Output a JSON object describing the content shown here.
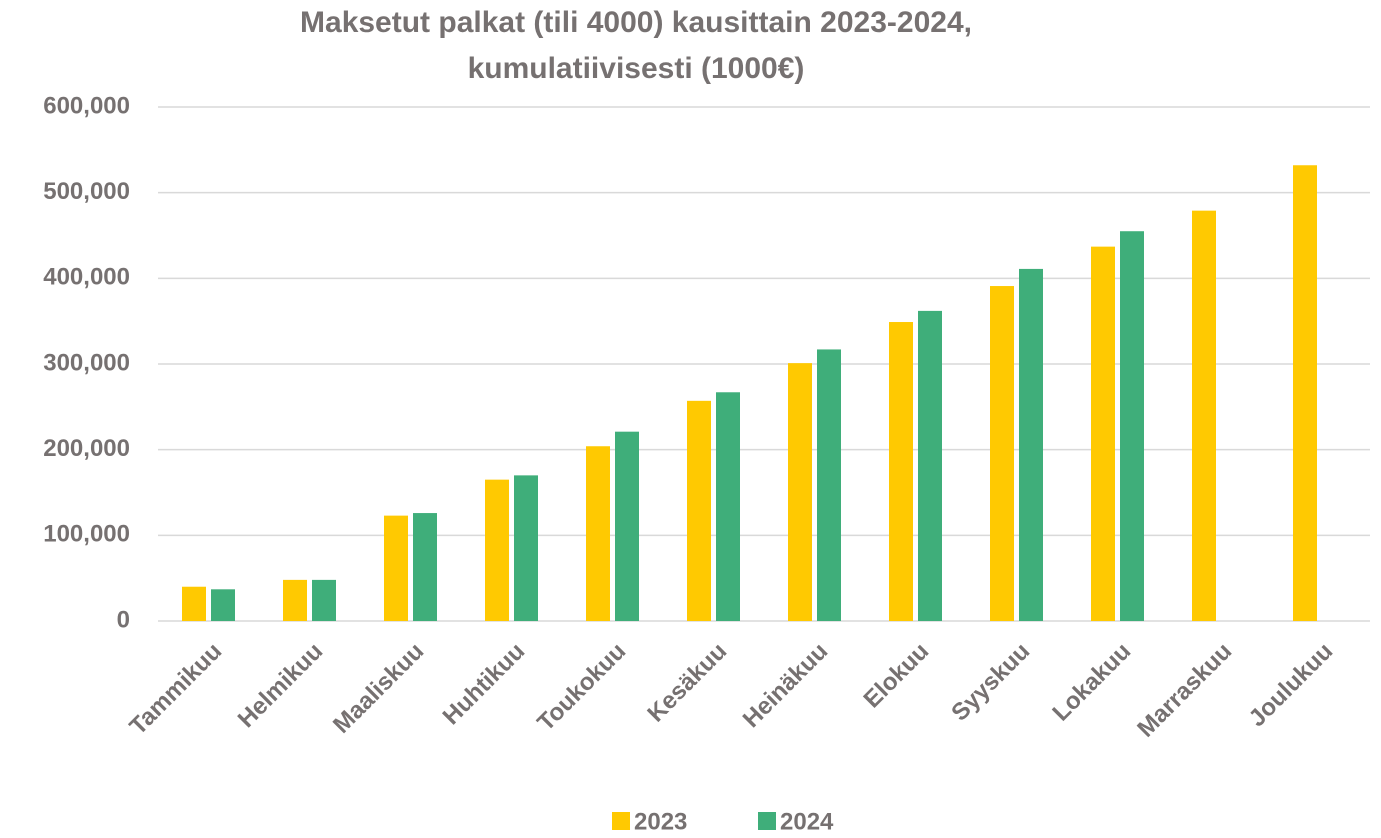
{
  "chart_data": {
    "type": "bar",
    "title": [
      "Maksetut palkat (tili 4000) kausittain 2023-2024,",
      "kumulatiivisesti (1000€)"
    ],
    "categories": [
      "Tammikuu",
      "Helmikuu",
      "Maaliskuu",
      "Huhtikuu",
      "Toukokuu",
      "Kesäkuu",
      "Heinäkuu",
      "Elokuu",
      "Syyskuu",
      "Lokakuu",
      "Marraskuu",
      "Joulukuu"
    ],
    "series": [
      {
        "name": "2023",
        "color": "#ffc901",
        "values": [
          40000,
          48000,
          123000,
          165000,
          204000,
          257000,
          301000,
          349000,
          391000,
          437000,
          479000,
          532000
        ]
      },
      {
        "name": "2024",
        "color": "#3fae7a",
        "values": [
          37000,
          48000,
          126000,
          170000,
          221000,
          267000,
          317000,
          362000,
          411000,
          455000,
          null,
          null
        ]
      }
    ],
    "ylim": [
      0,
      600000
    ],
    "yticks": [
      0,
      {
        "value": 100000,
        "label": "100,000"
      },
      {
        "value": 200000,
        "label": "200,000"
      },
      {
        "value": 300000,
        "label": "300,000"
      },
      {
        "value": 400000,
        "label": "400,000"
      },
      {
        "value": 500000,
        "label": "500,000"
      },
      {
        "value": 600000,
        "label": "600,000"
      }
    ],
    "grid": true,
    "legend": "bottom"
  }
}
